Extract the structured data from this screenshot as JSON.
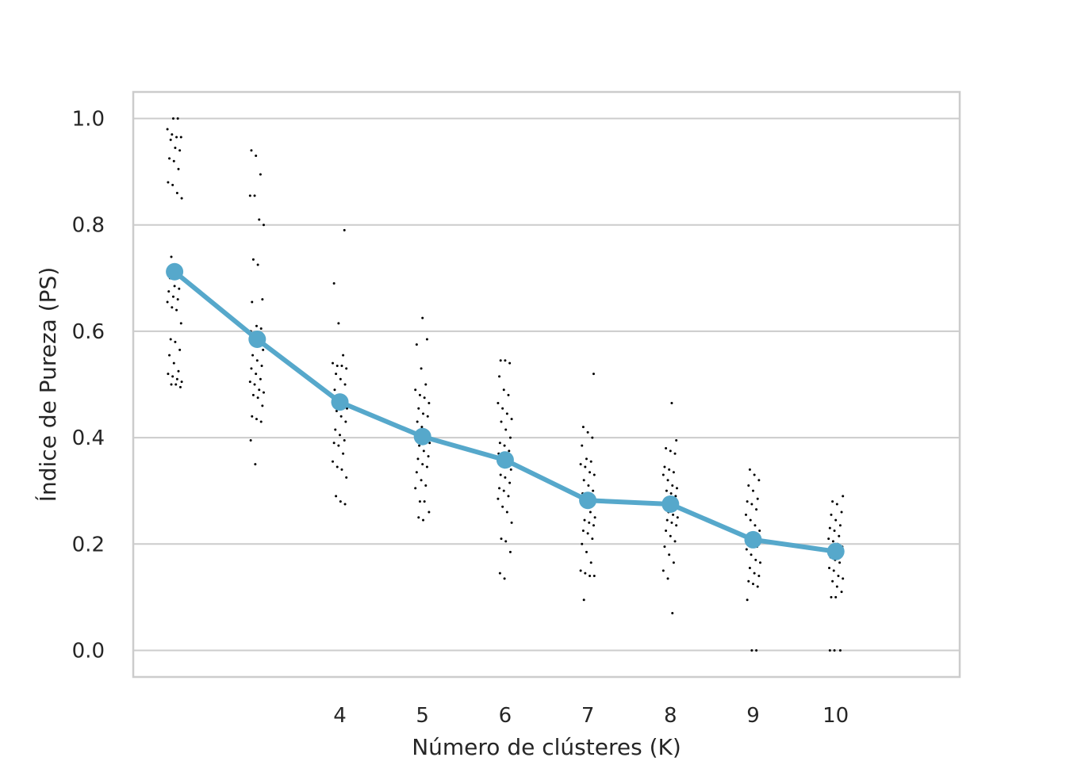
{
  "chart_data": {
    "type": "line",
    "xlabel": "Número de clústeres (K)",
    "ylabel": "Índice de Pureza (PS)",
    "x_positions": [
      2,
      3,
      4,
      5,
      6,
      7,
      8,
      9,
      10
    ],
    "x_tick_labels": [
      "4",
      "5",
      "6",
      "7",
      "8",
      "9",
      "10"
    ],
    "x_tick_positions": [
      4,
      5,
      6,
      7,
      8,
      9,
      10
    ],
    "xlim": [
      1.5,
      11.5
    ],
    "ylim": [
      -0.05,
      1.05
    ],
    "y_ticks": [
      0.0,
      0.2,
      0.4,
      0.6,
      0.8,
      1.0
    ],
    "y_tick_labels": [
      "0.0",
      "0.2",
      "0.4",
      "0.6",
      "0.8",
      "1.0"
    ],
    "grid": "horizontal",
    "series": [
      {
        "kind": "line-with-markers",
        "color": "#56a8cb",
        "x": [
          2,
          3,
          4,
          5,
          6,
          7,
          8,
          9,
          10
        ],
        "values": [
          0.712,
          0.585,
          0.467,
          0.402,
          0.358,
          0.282,
          0.275,
          0.208,
          0.186
        ]
      },
      {
        "kind": "strip-scatter",
        "color": "#000000",
        "points": [
          {
            "x": 2,
            "values": [
              1.0,
              1.0,
              0.98,
              0.97,
              0.965,
              0.965,
              0.96,
              0.945,
              0.94,
              0.925,
              0.92,
              0.905,
              0.88,
              0.875,
              0.86,
              0.85,
              0.74,
              0.725,
              0.72,
              0.7,
              0.685,
              0.68,
              0.675,
              0.665,
              0.66,
              0.655,
              0.645,
              0.64,
              0.615,
              0.585,
              0.58,
              0.565,
              0.555,
              0.54,
              0.525,
              0.52,
              0.515,
              0.51,
              0.505,
              0.5,
              0.5,
              0.495
            ]
          },
          {
            "x": 3,
            "values": [
              0.94,
              0.93,
              0.895,
              0.855,
              0.855,
              0.81,
              0.8,
              0.735,
              0.725,
              0.66,
              0.655,
              0.61,
              0.605,
              0.6,
              0.595,
              0.59,
              0.585,
              0.58,
              0.575,
              0.565,
              0.555,
              0.545,
              0.535,
              0.53,
              0.52,
              0.51,
              0.505,
              0.5,
              0.49,
              0.485,
              0.48,
              0.475,
              0.46,
              0.44,
              0.435,
              0.43,
              0.395,
              0.35
            ]
          },
          {
            "x": 4,
            "values": [
              0.79,
              0.69,
              0.615,
              0.555,
              0.54,
              0.535,
              0.535,
              0.53,
              0.52,
              0.51,
              0.5,
              0.49,
              0.48,
              0.475,
              0.47,
              0.465,
              0.46,
              0.455,
              0.45,
              0.44,
              0.43,
              0.415,
              0.405,
              0.395,
              0.39,
              0.385,
              0.37,
              0.355,
              0.345,
              0.34,
              0.325,
              0.29,
              0.28,
              0.275
            ]
          },
          {
            "x": 5,
            "values": [
              0.625,
              0.585,
              0.575,
              0.53,
              0.5,
              0.49,
              0.48,
              0.475,
              0.465,
              0.455,
              0.445,
              0.44,
              0.43,
              0.42,
              0.41,
              0.405,
              0.4,
              0.395,
              0.39,
              0.385,
              0.375,
              0.365,
              0.36,
              0.35,
              0.345,
              0.335,
              0.32,
              0.31,
              0.305,
              0.28,
              0.28,
              0.26,
              0.25,
              0.245
            ]
          },
          {
            "x": 6,
            "values": [
              0.545,
              0.545,
              0.54,
              0.515,
              0.49,
              0.48,
              0.465,
              0.455,
              0.445,
              0.435,
              0.43,
              0.415,
              0.4,
              0.39,
              0.385,
              0.375,
              0.37,
              0.365,
              0.36,
              0.355,
              0.35,
              0.345,
              0.34,
              0.33,
              0.325,
              0.315,
              0.305,
              0.3,
              0.29,
              0.285,
              0.27,
              0.26,
              0.24,
              0.21,
              0.205,
              0.185,
              0.145,
              0.135
            ]
          },
          {
            "x": 7,
            "values": [
              0.52,
              0.42,
              0.41,
              0.4,
              0.385,
              0.36,
              0.355,
              0.35,
              0.345,
              0.335,
              0.33,
              0.32,
              0.31,
              0.3,
              0.295,
              0.29,
              0.285,
              0.28,
              0.27,
              0.26,
              0.25,
              0.245,
              0.24,
              0.235,
              0.225,
              0.22,
              0.21,
              0.2,
              0.185,
              0.165,
              0.15,
              0.145,
              0.14,
              0.14,
              0.095
            ]
          },
          {
            "x": 8,
            "values": [
              0.465,
              0.395,
              0.38,
              0.375,
              0.37,
              0.345,
              0.34,
              0.335,
              0.33,
              0.32,
              0.31,
              0.305,
              0.3,
              0.295,
              0.29,
              0.285,
              0.28,
              0.275,
              0.27,
              0.26,
              0.255,
              0.25,
              0.245,
              0.24,
              0.235,
              0.225,
              0.215,
              0.205,
              0.195,
              0.18,
              0.165,
              0.15,
              0.135,
              0.07
            ]
          },
          {
            "x": 9,
            "values": [
              0.34,
              0.33,
              0.32,
              0.31,
              0.3,
              0.285,
              0.28,
              0.275,
              0.265,
              0.255,
              0.245,
              0.235,
              0.225,
              0.22,
              0.215,
              0.21,
              0.205,
              0.2,
              0.195,
              0.19,
              0.18,
              0.17,
              0.165,
              0.155,
              0.145,
              0.14,
              0.13,
              0.125,
              0.12,
              0.095,
              0.0,
              0.0
            ]
          },
          {
            "x": 10,
            "values": [
              0.29,
              0.28,
              0.275,
              0.26,
              0.255,
              0.245,
              0.235,
              0.23,
              0.225,
              0.215,
              0.21,
              0.205,
              0.2,
              0.195,
              0.19,
              0.185,
              0.18,
              0.175,
              0.17,
              0.165,
              0.155,
              0.15,
              0.14,
              0.135,
              0.13,
              0.12,
              0.11,
              0.1,
              0.1,
              0.0,
              0.0,
              0.0
            ]
          }
        ]
      }
    ]
  }
}
